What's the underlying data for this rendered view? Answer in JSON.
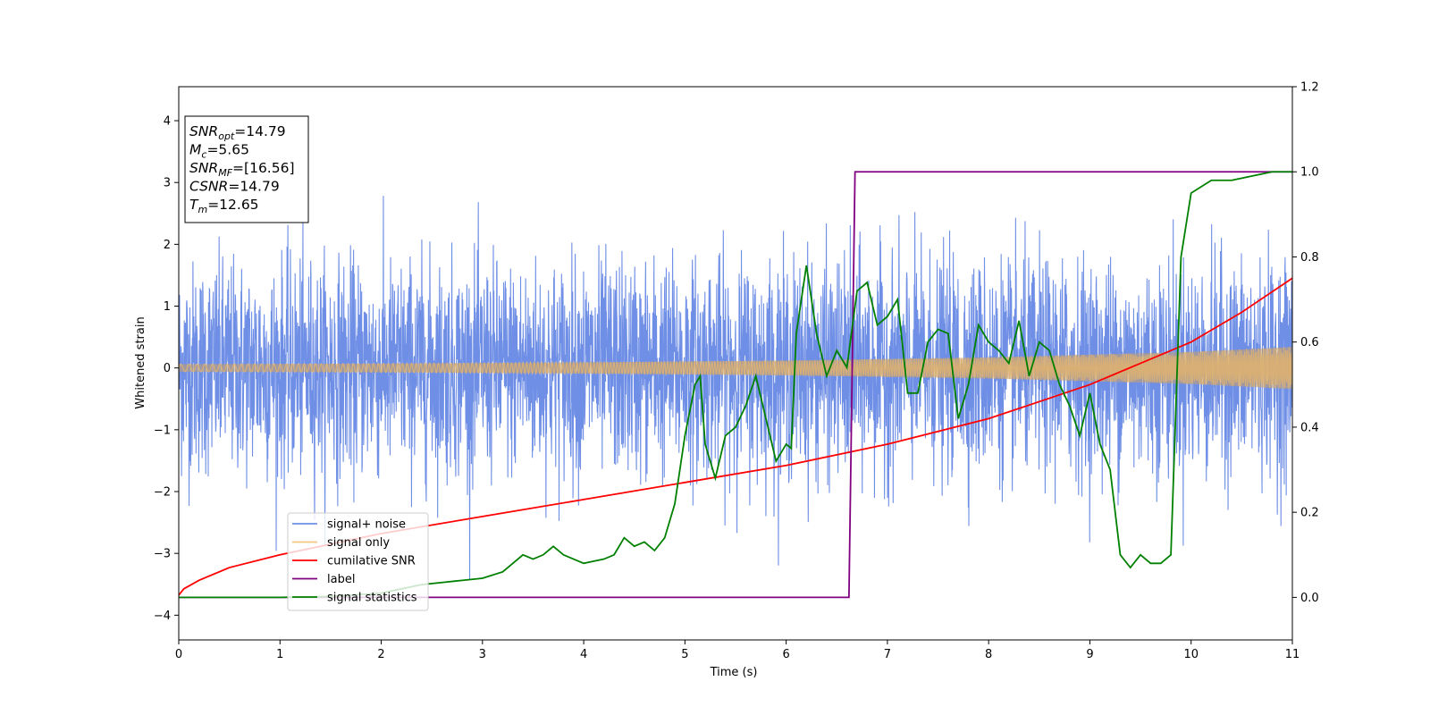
{
  "chart_data": {
    "type": "line",
    "xlabel": "Time (s)",
    "ylabel": "Whitened strain",
    "xlim": [
      0,
      11
    ],
    "ylim_left": [
      -4.4,
      4.55
    ],
    "ylim_right": [
      -0.1,
      1.2
    ],
    "x_ticks": [
      0,
      1,
      2,
      3,
      4,
      5,
      6,
      7,
      8,
      9,
      10,
      11
    ],
    "y_left_ticks": [
      -4,
      -3,
      -2,
      -1,
      0,
      1,
      2,
      3,
      4
    ],
    "y_right_ticks": [
      "0.0",
      "0.2",
      "0.4",
      "0.6",
      "0.8",
      "1.0",
      "1.2"
    ],
    "grid": false,
    "legend_position": "lower-left",
    "annotation": [
      {
        "base": "SNR",
        "sub": "opt",
        "rest": "=14.79"
      },
      {
        "base": "M",
        "sub": "c",
        "rest": "=5.65"
      },
      {
        "base": "SNR",
        "sub": "MF",
        "rest": "=[16.56]"
      },
      {
        "base": "CSNR",
        "sub": "",
        "rest": "=14.79"
      },
      {
        "base": "T",
        "sub": "m",
        "rest": "=12.65"
      }
    ],
    "series": [
      {
        "name": "signal+ noise",
        "axis": "left",
        "color": "#6f8fe6",
        "description": "whitened noise plus signal, amplitude about ±1.4 with spikes to ±4"
      },
      {
        "name": "signal only",
        "axis": "left",
        "color": "#f5c77a",
        "envelope_x": [
          0,
          2,
          4,
          6,
          8,
          10,
          11
        ],
        "envelope_y": [
          0.06,
          0.07,
          0.09,
          0.12,
          0.17,
          0.26,
          0.34
        ]
      },
      {
        "name": "cumilative SNR",
        "axis": "right",
        "color": "#ff0000",
        "x": [
          0,
          0.05,
          0.2,
          0.5,
          1,
          2,
          3,
          4,
          5,
          6,
          7,
          8,
          9,
          10,
          10.5,
          11
        ],
        "y": [
          0.005,
          0.02,
          0.04,
          0.07,
          0.1,
          0.15,
          0.19,
          0.23,
          0.27,
          0.31,
          0.36,
          0.42,
          0.5,
          0.6,
          0.67,
          0.75
        ]
      },
      {
        "name": "label",
        "axis": "right",
        "color": "#800080",
        "x": [
          0,
          6.62,
          6.68,
          11
        ],
        "y": [
          0,
          0,
          1,
          1
        ]
      },
      {
        "name": "signal statistics",
        "axis": "right",
        "color": "#008000",
        "x": [
          0,
          0.5,
          1,
          1.5,
          2,
          2.2,
          2.4,
          2.6,
          2.8,
          3,
          3.2,
          3.3,
          3.4,
          3.5,
          3.6,
          3.7,
          3.8,
          3.9,
          4,
          4.1,
          4.2,
          4.3,
          4.4,
          4.5,
          4.6,
          4.7,
          4.8,
          4.9,
          5,
          5.1,
          5.15,
          5.2,
          5.3,
          5.4,
          5.5,
          5.6,
          5.7,
          5.8,
          5.9,
          6,
          6.05,
          6.1,
          6.2,
          6.3,
          6.4,
          6.5,
          6.6,
          6.7,
          6.8,
          6.9,
          7,
          7.1,
          7.2,
          7.3,
          7.4,
          7.5,
          7.6,
          7.7,
          7.8,
          7.9,
          8,
          8.1,
          8.2,
          8.3,
          8.4,
          8.5,
          8.6,
          8.7,
          8.8,
          8.9,
          9,
          9.1,
          9.2,
          9.3,
          9.4,
          9.5,
          9.6,
          9.7,
          9.8,
          9.9,
          10,
          10.2,
          10.4,
          10.6,
          10.8,
          11
        ],
        "y": [
          0,
          0,
          0,
          0.002,
          0.01,
          0.02,
          0.03,
          0.035,
          0.04,
          0.045,
          0.06,
          0.08,
          0.1,
          0.09,
          0.1,
          0.12,
          0.1,
          0.09,
          0.08,
          0.085,
          0.09,
          0.1,
          0.14,
          0.12,
          0.13,
          0.11,
          0.14,
          0.22,
          0.38,
          0.5,
          0.52,
          0.36,
          0.28,
          0.38,
          0.4,
          0.45,
          0.52,
          0.42,
          0.32,
          0.36,
          0.35,
          0.62,
          0.78,
          0.62,
          0.52,
          0.58,
          0.54,
          0.72,
          0.74,
          0.64,
          0.66,
          0.7,
          0.48,
          0.48,
          0.6,
          0.63,
          0.62,
          0.42,
          0.5,
          0.64,
          0.6,
          0.58,
          0.55,
          0.65,
          0.52,
          0.6,
          0.58,
          0.5,
          0.45,
          0.38,
          0.48,
          0.36,
          0.3,
          0.1,
          0.07,
          0.1,
          0.08,
          0.08,
          0.1,
          0.8,
          0.95,
          0.98,
          0.98,
          0.99,
          1.0,
          1.0
        ]
      }
    ]
  }
}
